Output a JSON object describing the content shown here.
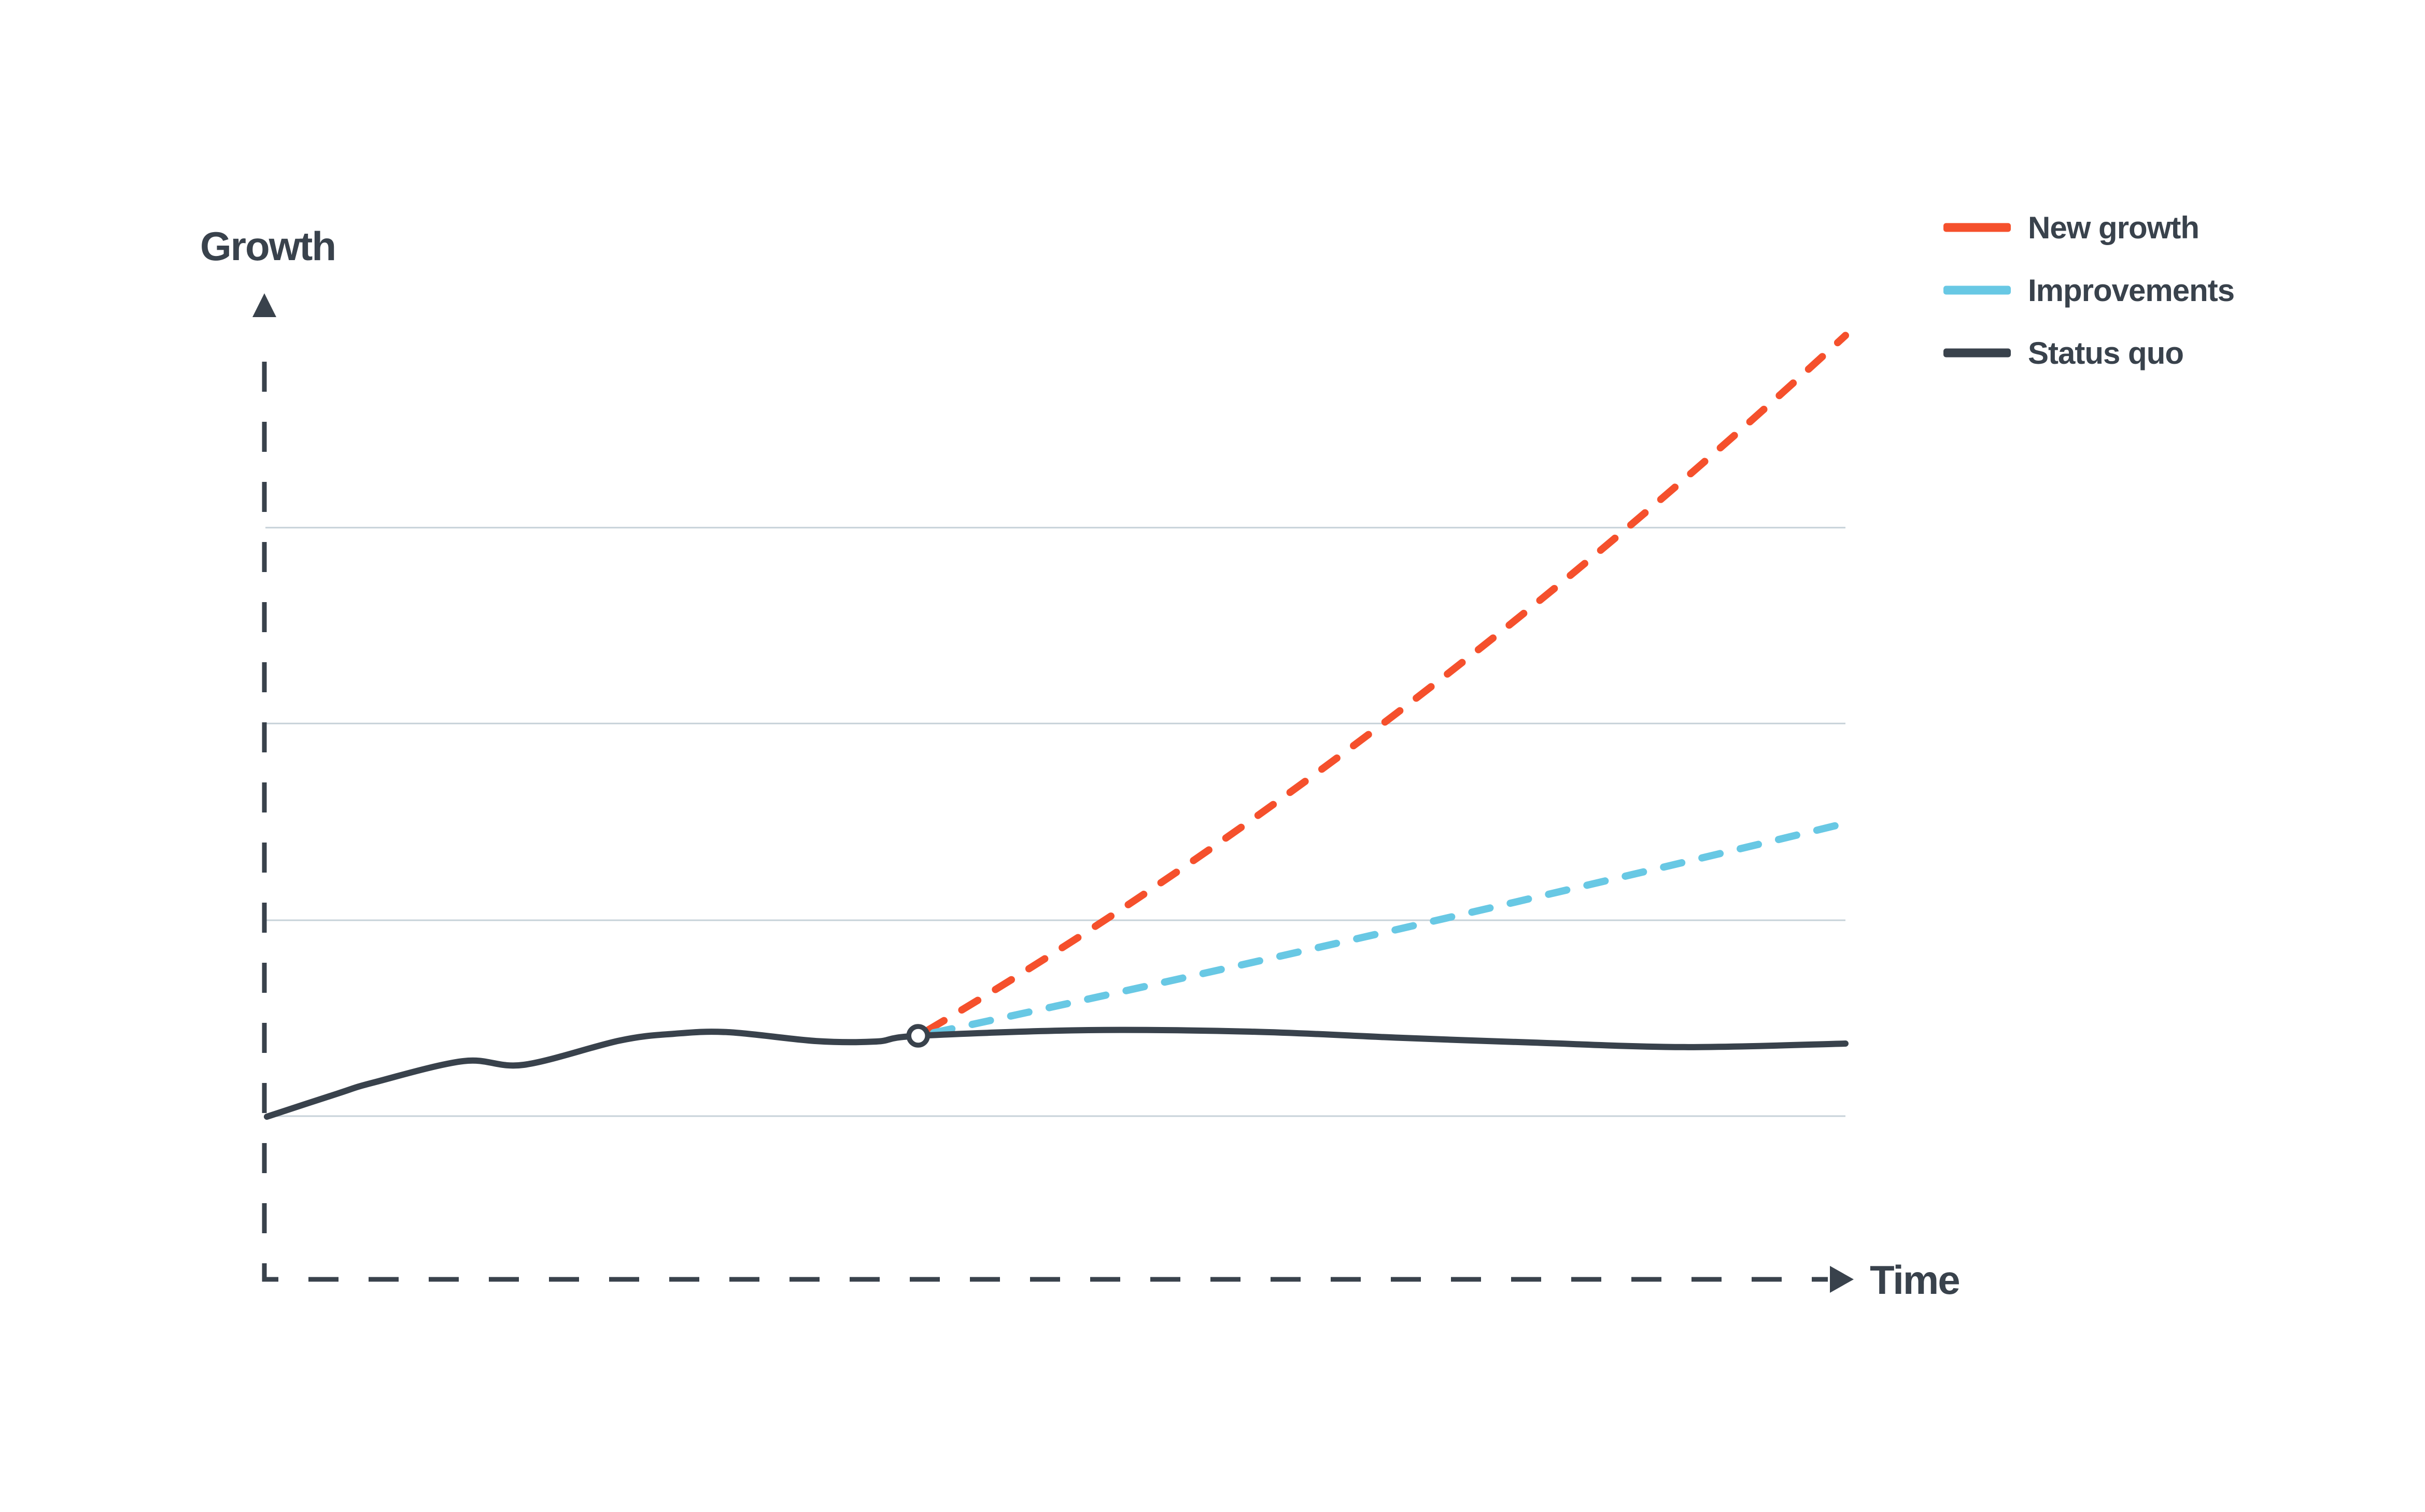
{
  "chart_data": {
    "type": "line",
    "title": "",
    "xlabel": "Time",
    "ylabel": "Growth",
    "axis_style": "dashed-with-arrowheads",
    "grid": {
      "visible": true,
      "color": "#C7D2D9",
      "levels_g": [
        0.175,
        0.385,
        0.596,
        0.806
      ]
    },
    "x_range": [
      0,
      1
    ],
    "y_range": [
      0,
      1.05
    ],
    "branch_point": {
      "t": 0.4135,
      "g": 0.2611,
      "marker": "open-circle"
    },
    "series": [
      {
        "name": "New growth",
        "color": "#F5502C",
        "line_style": "dashed",
        "shape": "quadratic",
        "points": [
          [
            0.4197,
            0.2672
          ],
          [
            0.7043,
            0.5511
          ],
          [
            1.0,
            1.012
          ]
        ]
      },
      {
        "name": "Improvements",
        "color": "#68C8E4",
        "line_style": "dashed",
        "shape": "quadratic",
        "points": [
          [
            0.4233,
            0.2644
          ],
          [
            0.7121,
            0.37
          ],
          [
            1.0,
            0.489
          ]
        ]
      },
      {
        "name": "Status quo",
        "color": "#39424C",
        "line_style": "solid",
        "shape": "smooth",
        "points": [
          [
            0.0016,
            0.1744
          ],
          [
            0.046,
            0.199
          ],
          [
            0.069,
            0.211
          ],
          [
            0.126,
            0.234
          ],
          [
            0.164,
            0.23
          ],
          [
            0.2246,
            0.256
          ],
          [
            0.259,
            0.2633
          ],
          [
            0.2934,
            0.265
          ],
          [
            0.349,
            0.2555
          ],
          [
            0.387,
            0.255
          ],
          [
            0.4135,
            0.2611
          ],
          [
            0.5213,
            0.2672
          ],
          [
            0.626,
            0.2655
          ],
          [
            0.718,
            0.259
          ],
          [
            0.8,
            0.254
          ],
          [
            0.898,
            0.249
          ],
          [
            1.0,
            0.2528
          ]
        ]
      }
    ],
    "legend": {
      "position": "top-right",
      "entries": [
        {
          "label": "New growth",
          "color": "#F5502C"
        },
        {
          "label": "Improvements",
          "color": "#68C8E4"
        },
        {
          "label": "Status quo",
          "color": "#39424C"
        }
      ]
    },
    "colors": {
      "axis": "#39424C",
      "text": "#39424C",
      "gridline": "#C7D2D9",
      "background": "#FFFFFF",
      "marker_fill": "#FFFFFF"
    }
  }
}
